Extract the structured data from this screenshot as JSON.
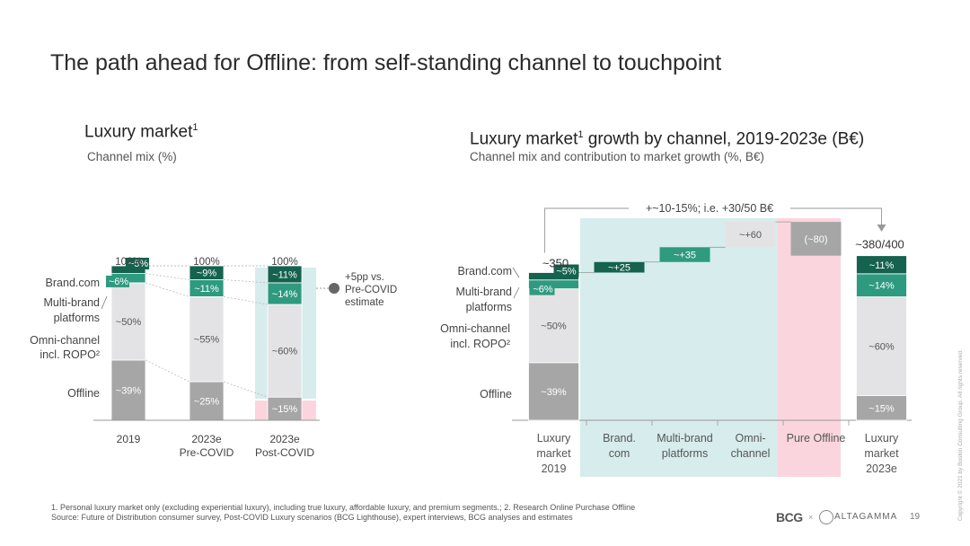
{
  "title": "The path ahead for Offline: from self-standing channel to touchpoint",
  "left_panel": {
    "title": "Luxury market",
    "title_sup": "1",
    "subtitle": "Channel mix (%)"
  },
  "right_panel": {
    "title": "Luxury market",
    "title_sup": "1",
    "title_rest": " growth by channel, 2019-2023e (B€)",
    "subtitle": "Channel mix and contribution to market growth (%, B€)"
  },
  "colors": {
    "offline": "#a6a6a6",
    "omni": "#e3e3e5",
    "multibrand": "#2e9a80",
    "brand": "#15624e",
    "teal_bg": "#d7ecec",
    "pink_bg": "#fbd5dd",
    "connector": "#bbbbbb"
  },
  "chart_data": [
    {
      "type": "bar",
      "stacked": true,
      "title": "Luxury market",
      "subtitle": "Channel mix (%)",
      "categories": [
        "2019",
        "2023e Pre-COVID",
        "2023e Post-COVID"
      ],
      "category_labels": [
        [
          "2019"
        ],
        [
          "2023e",
          "Pre-COVID"
        ],
        [
          "2023e",
          "Post-COVID"
        ]
      ],
      "totals": [
        "100%",
        "100%",
        "100%"
      ],
      "series": [
        {
          "name": "Offline",
          "values": [
            39,
            25,
            15
          ],
          "labels": [
            "~39%",
            "~25%",
            "~15%"
          ]
        },
        {
          "name": "Omni-channel incl. ROPO²",
          "values": [
            50,
            55,
            60
          ],
          "labels": [
            "~50%",
            "~55%",
            "~60%"
          ]
        },
        {
          "name": "Multi-brand platforms",
          "values": [
            6,
            11,
            14
          ],
          "labels": [
            "~6%",
            "~11%",
            "~14%"
          ]
        },
        {
          "name": "Brand.com",
          "values": [
            5,
            9,
            11
          ],
          "labels": [
            "~5%",
            "~9%",
            "~11%"
          ]
        }
      ],
      "legend_labels": {
        "brand": "Brand.com",
        "multibrand": [
          "Multi-brand",
          "platforms"
        ],
        "omni": [
          "Omni-channel",
          "incl. ROPO²"
        ],
        "offline": "Offline"
      },
      "annotation": [
        "+5pp vs.",
        "Pre-COVID",
        "estimate"
      ]
    },
    {
      "type": "bar",
      "subtype": "waterfall",
      "title": "Luxury market¹ growth by channel, 2019-2023e (B€)",
      "categories": [
        "Luxury market 2019",
        "Brand. com",
        "Multi-brand platforms",
        "Omni-channel",
        "Pure Offline",
        "Luxury market 2023e"
      ],
      "category_labels": [
        [
          "Luxury",
          "market",
          "2019"
        ],
        [
          "Brand.",
          "com"
        ],
        [
          "Multi-brand",
          "platforms"
        ],
        [
          "Omni-",
          "channel"
        ],
        [
          "Pure Offline"
        ],
        [
          "Luxury",
          "market",
          "2023e"
        ]
      ],
      "values": [
        350,
        25,
        35,
        60,
        -80,
        390
      ],
      "value_labels": [
        "~350",
        "~+25",
        "~+35",
        "~+60",
        "(~80)",
        "~380/400"
      ],
      "mix_2019": {
        "Offline": 39,
        "Omni-channel": 50,
        "Multi-brand": 6,
        "Brand.com": 5,
        "labels": [
          "~39%",
          "~50%",
          "~6%",
          "~5%"
        ]
      },
      "mix_2023e": {
        "Offline": 15,
        "Omni-channel": 60,
        "Multi-brand": 14,
        "Brand.com": 11,
        "labels": [
          "~15%",
          "~60%",
          "~14%",
          "~11%"
        ]
      },
      "legend_labels": {
        "brand": "Brand.com",
        "multibrand": [
          "Multi-brand",
          "platforms"
        ],
        "omni": [
          "Omni-channel",
          "incl. ROPO²"
        ],
        "offline": "Offline"
      },
      "growth_annotation": "+~10-15%; i.e. +30/50 B€"
    }
  ],
  "footnotes": {
    "line1": "1. Personal luxury market only (excluding experiential luxury), including true luxury, affordable luxury, and premium segments.; 2. Research Online Purchase Offline",
    "line2": "Source: Future of Distribution consumer survey, Post-COVID Luxury scenarios (BCG Lighthouse), expert interviews, BCG analyses and estimates"
  },
  "page_number": "19",
  "logos": {
    "bcg": "BCG",
    "altagamma": "ALTAGAMMA",
    "separator": "×"
  },
  "copyright": "Copyright © 2021 by Boston Consulting Group. All rights reserved."
}
